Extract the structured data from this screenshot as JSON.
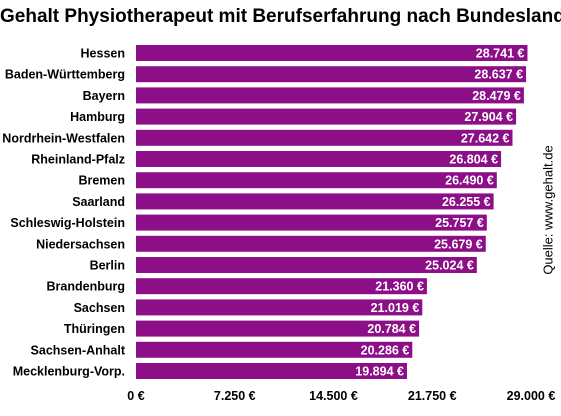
{
  "title": "Gehalt Physiotherapeut mit Berufserfahrung nach Bundesland",
  "source": "Quelle: www.gehalt.de",
  "colors": {
    "bar": "#8c0f88",
    "bar_label": "#ffffff",
    "text": "#000000"
  },
  "chart_data": {
    "type": "bar",
    "orientation": "horizontal",
    "categories": [
      "Hessen",
      "Baden-Württemberg",
      "Bayern",
      "Hamburg",
      "Nordrhein-Westfalen",
      "Rheinland-Pfalz",
      "Bremen",
      "Saarland",
      "Schleswig-Holstein",
      "Niedersachsen",
      "Berlin",
      "Brandenburg",
      "Sachsen",
      "Thüringen",
      "Sachsen-Anhalt",
      "Mecklenburg-Vorp."
    ],
    "values": [
      28741,
      28637,
      28479,
      27904,
      27642,
      26804,
      26490,
      26255,
      25757,
      25679,
      25024,
      21360,
      21019,
      20784,
      20286,
      19894
    ],
    "value_labels": [
      "28.741 €",
      "28.637 €",
      "28.479 €",
      "27.904 €",
      "27.642 €",
      "26.804 €",
      "26.490 €",
      "26.255 €",
      "25.757 €",
      "25.679 €",
      "25.024 €",
      "21.360 €",
      "21.019 €",
      "20.784 €",
      "20.286 €",
      "19.894 €"
    ],
    "xlim": [
      0,
      29000
    ],
    "ticks": [
      0,
      7250,
      14500,
      21750,
      29000
    ],
    "tick_labels": [
      "0 €",
      "7.250 €",
      "14.500 €",
      "21.750 €",
      "29.000 €"
    ],
    "grid": false,
    "legend": "none"
  }
}
